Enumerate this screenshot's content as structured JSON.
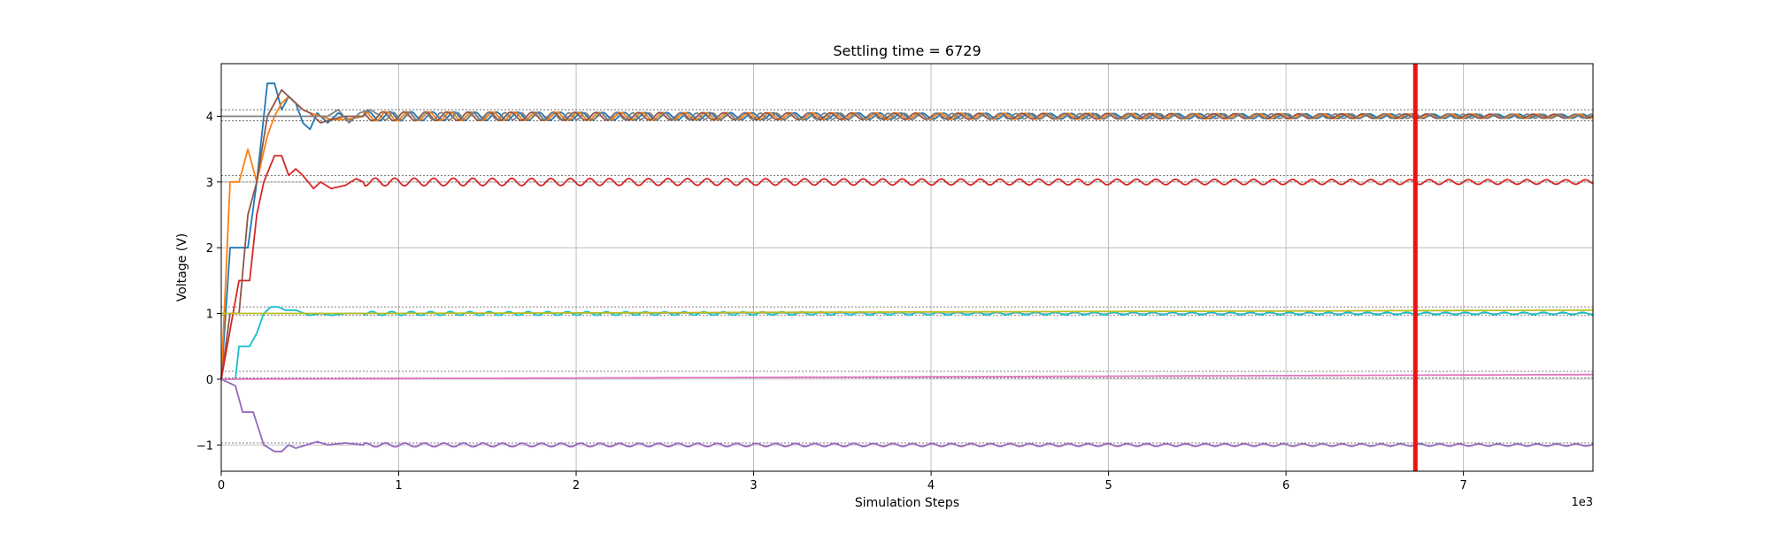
{
  "chart_data": {
    "type": "line",
    "title": "Settling time = 6729",
    "xlabel": "Simulation Steps",
    "ylabel": "Voltage (V)",
    "x_multiplier_label": "1e3",
    "xlim": [
      0,
      7730
    ],
    "ylim": [
      -1.4,
      4.8
    ],
    "grid": true,
    "x_ticks": [
      0,
      1000,
      2000,
      3000,
      4000,
      5000,
      6000,
      7000
    ],
    "x_tick_labels": [
      "0",
      "1",
      "2",
      "3",
      "4",
      "5",
      "6",
      "7"
    ],
    "y_ticks": [
      -1,
      0,
      1,
      2,
      3,
      4
    ],
    "y_tick_labels": [
      "−1",
      "0",
      "1",
      "2",
      "3",
      "4"
    ],
    "settling_time_marker": {
      "x": 6729,
      "color": "#ee1111"
    },
    "reference_levels": [
      4.1,
      3.93,
      3.1,
      3.0,
      1.1,
      0.97,
      0.12,
      0.02,
      -0.97
    ],
    "series": [
      {
        "color": "#1f77b4",
        "target": 4.0,
        "amplitude": 0.07,
        "decay": 0.00012,
        "period": 120,
        "initial": [
          [
            0,
            0
          ],
          [
            50,
            4.0
          ],
          [
            100,
            4.0
          ]
        ],
        "transient": [
          [
            0,
            0
          ],
          [
            50,
            2.0
          ],
          [
            100,
            2.0
          ],
          [
            150,
            2.0
          ],
          [
            200,
            3.0
          ],
          [
            260,
            4.5
          ],
          [
            300,
            4.5
          ],
          [
            340,
            4.1
          ],
          [
            380,
            4.3
          ],
          [
            420,
            4.2
          ],
          [
            460,
            3.9
          ],
          [
            500,
            3.8
          ],
          [
            540,
            4.05
          ],
          [
            600,
            3.9
          ],
          [
            660,
            4.05
          ],
          [
            720,
            3.95
          ],
          [
            800,
            4.0
          ]
        ]
      },
      {
        "color": "#ff7f0e",
        "target": 4.0,
        "amplitude": 0.07,
        "decay": 0.00012,
        "period": 120,
        "initial": [
          [
            0,
            0
          ],
          [
            50,
            3.0
          ],
          [
            100,
            3.0
          ]
        ],
        "transient": [
          [
            0,
            0
          ],
          [
            50,
            3.0
          ],
          [
            100,
            3.0
          ],
          [
            150,
            3.5
          ],
          [
            200,
            3.0
          ],
          [
            260,
            3.7
          ],
          [
            300,
            4.0
          ],
          [
            340,
            4.2
          ],
          [
            380,
            4.3
          ],
          [
            420,
            4.2
          ],
          [
            460,
            4.1
          ],
          [
            500,
            4.05
          ],
          [
            560,
            4.0
          ],
          [
            620,
            3.95
          ],
          [
            700,
            3.95
          ],
          [
            800,
            4.0
          ]
        ]
      },
      {
        "color": "#8c564b",
        "target": 4.0,
        "amplitude": 0.07,
        "decay": 0.00012,
        "period": 120,
        "initial": [
          [
            0,
            0
          ],
          [
            50,
            1.0
          ],
          [
            100,
            1.0
          ]
        ],
        "transient": [
          [
            0,
            0
          ],
          [
            50,
            1.0
          ],
          [
            100,
            1.0
          ],
          [
            150,
            2.5
          ],
          [
            200,
            3.0
          ],
          [
            260,
            4.0
          ],
          [
            300,
            4.2
          ],
          [
            340,
            4.4
          ],
          [
            380,
            4.3
          ],
          [
            420,
            4.2
          ],
          [
            460,
            4.1
          ],
          [
            500,
            4.05
          ],
          [
            560,
            3.9
          ],
          [
            620,
            3.95
          ],
          [
            700,
            4.0
          ],
          [
            800,
            4.0
          ]
        ]
      },
      {
        "color": "#7f7f7f",
        "target": 4.0,
        "amplitude": 0.06,
        "decay": 0.0001,
        "period": 90,
        "initial": [
          [
            0,
            0
          ],
          [
            800,
            4.0
          ]
        ],
        "transient": [
          [
            600,
            4.0
          ],
          [
            660,
            4.1
          ],
          [
            720,
            3.9
          ],
          [
            780,
            4.05
          ],
          [
            840,
            4.1
          ],
          [
            900,
            4.0
          ]
        ]
      },
      {
        "color": "#d62728",
        "target": 3.0,
        "amplitude": 0.06,
        "decay": 8e-05,
        "period": 110,
        "initial": [
          [
            0,
            0
          ],
          [
            100,
            1.5
          ]
        ],
        "transient": [
          [
            0,
            0
          ],
          [
            100,
            1.5
          ],
          [
            160,
            1.5
          ],
          [
            200,
            2.5
          ],
          [
            240,
            3.0
          ],
          [
            300,
            3.4
          ],
          [
            340,
            3.4
          ],
          [
            380,
            3.1
          ],
          [
            420,
            3.2
          ],
          [
            460,
            3.1
          ],
          [
            520,
            2.9
          ],
          [
            560,
            3.0
          ],
          [
            620,
            2.9
          ],
          [
            700,
            2.95
          ],
          [
            760,
            3.05
          ],
          [
            800,
            3.0
          ]
        ]
      },
      {
        "color": "#17becf",
        "target": 1.0,
        "amplitude": 0.03,
        "decay": 8e-05,
        "period": 110,
        "initial": [
          [
            0,
            0
          ],
          [
            100,
            0.5
          ]
        ],
        "transient": [
          [
            0,
            0
          ],
          [
            80,
            0.0
          ],
          [
            100,
            0.5
          ],
          [
            160,
            0.5
          ],
          [
            200,
            0.7
          ],
          [
            240,
            1.0
          ],
          [
            280,
            1.1
          ],
          [
            320,
            1.1
          ],
          [
            360,
            1.05
          ],
          [
            420,
            1.05
          ],
          [
            500,
            0.97
          ],
          [
            560,
            1.0
          ],
          [
            620,
            0.97
          ],
          [
            700,
            1.0
          ],
          [
            800,
            1.0
          ]
        ]
      },
      {
        "color": "#bcbd22",
        "target": 1.05,
        "amplitude": 0.02,
        "decay": 0.0002,
        "period": 110,
        "initial": [
          [
            0,
            1.0
          ]
        ],
        "transient": [
          [
            800,
            1.0
          ],
          [
            7730,
            1.05
          ]
        ]
      },
      {
        "color": "#9467bd",
        "target": -1.0,
        "amplitude": 0.03,
        "decay": 8e-05,
        "period": 110,
        "initial": [
          [
            0,
            0
          ]
        ],
        "transient": [
          [
            0,
            0
          ],
          [
            80,
            -0.1
          ],
          [
            120,
            -0.5
          ],
          [
            180,
            -0.5
          ],
          [
            240,
            -1.0
          ],
          [
            300,
            -1.1
          ],
          [
            340,
            -1.1
          ],
          [
            380,
            -1.0
          ],
          [
            420,
            -1.05
          ],
          [
            480,
            -1.0
          ],
          [
            540,
            -0.95
          ],
          [
            600,
            -1.0
          ],
          [
            700,
            -0.97
          ],
          [
            800,
            -1.0
          ]
        ]
      },
      {
        "color": "#e377c2",
        "target": 0.07,
        "amplitude": 0.0,
        "decay": 0.0,
        "period": 100,
        "initial": [
          [
            0,
            0
          ]
        ],
        "transient": [
          [
            0,
            0
          ],
          [
            7730,
            0.07
          ]
        ]
      }
    ]
  }
}
